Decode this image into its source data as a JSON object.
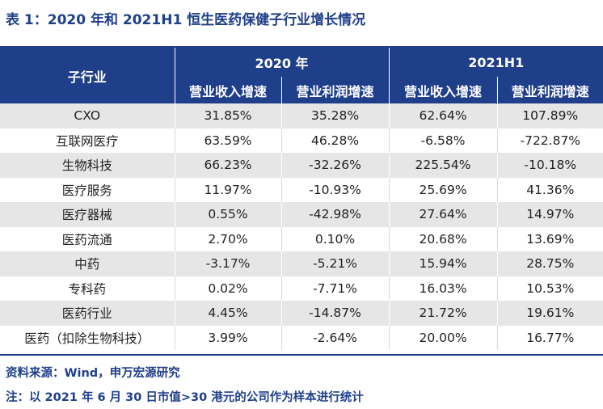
{
  "title": "表 1：2020 年和 2021H1 恒生医药保健子行业增长情况",
  "table": {
    "header_sub_industry": "子行业",
    "periods": [
      "2020 年",
      "2021H1"
    ],
    "metrics": [
      "营业收入增速",
      "营业利润增速",
      "营业收入增速",
      "营业利润增速"
    ],
    "rows": [
      [
        "CXO",
        "31.85%",
        "35.28%",
        "62.64%",
        "107.89%"
      ],
      [
        "互联网医疗",
        "63.59%",
        "46.28%",
        "-6.58%",
        "-722.87%"
      ],
      [
        "生物科技",
        "66.23%",
        "-32.26%",
        "225.54%",
        "-10.18%"
      ],
      [
        "医疗服务",
        "11.97%",
        "-10.93%",
        "25.69%",
        "41.36%"
      ],
      [
        "医疗器械",
        "0.55%",
        "-42.98%",
        "27.64%",
        "14.97%"
      ],
      [
        "医药流通",
        "2.70%",
        "0.10%",
        "20.68%",
        "13.69%"
      ],
      [
        "中药",
        "-3.17%",
        "-5.21%",
        "15.94%",
        "28.75%"
      ],
      [
        "专科药",
        "0.02%",
        "-7.71%",
        "16.03%",
        "10.53%"
      ],
      [
        "医药行业",
        "4.45%",
        "-14.87%",
        "21.72%",
        "19.61%"
      ],
      [
        "医药（扣除生物科技）",
        "3.99%",
        "-2.64%",
        "20.00%",
        "16.77%"
      ]
    ]
  },
  "source": "资料来源：Wind，申万宏源研究",
  "note": "注：以 2021 年 6 月 30 日市值>30 港元的公司作为样本进行统计",
  "colors": {
    "accent": "#1f3f8a",
    "stripe": "#e6e6e6"
  }
}
